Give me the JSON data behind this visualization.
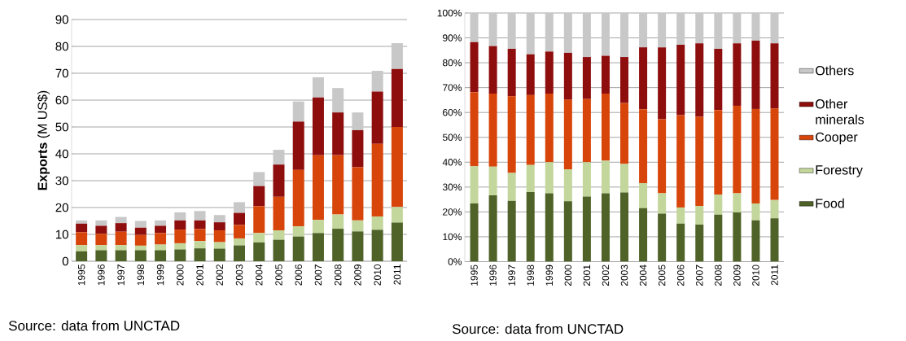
{
  "chart_data": [
    {
      "type": "bar",
      "stacked": true,
      "categories": [
        "1995",
        "1996",
        "1997",
        "1998",
        "1999",
        "2000",
        "2001",
        "2002",
        "2003",
        "2004",
        "2005",
        "2006",
        "2007",
        "2008",
        "2009",
        "2010",
        "2011"
      ],
      "ylabel": "**Exports** (M US$)",
      "ylim": [
        0,
        90
      ],
      "yticks": [
        0,
        10,
        20,
        30,
        40,
        50,
        60,
        70,
        80,
        90
      ],
      "grid": "y",
      "legend": false,
      "annotations": [
        "Source: data from UNCTAD"
      ],
      "series": [
        {
          "color": "#4f6228",
          "values": [
            3.7,
            4.1,
            4.1,
            4.1,
            4.1,
            4.4,
            4.8,
            4.7,
            5.9,
            7.0,
            8.0,
            9.2,
            10.5,
            12.1,
            11.1,
            11.7,
            14.4
          ]
        },
        {
          "color": "#c3d69b",
          "values": [
            2.3,
            1.9,
            1.9,
            1.7,
            2.1,
            2.3,
            2.7,
            2.4,
            2.6,
            3.5,
            3.5,
            3.8,
            4.9,
            5.3,
            4.1,
            5.0,
            5.8
          ]
        },
        {
          "color": "#d8450a",
          "values": [
            4.8,
            4.2,
            5.0,
            4.0,
            4.3,
            5.1,
            4.5,
            4.4,
            5.0,
            10.0,
            12.5,
            21.0,
            24.1,
            22.1,
            19.8,
            27.0,
            29.8
          ]
        },
        {
          "color": "#8e0d0d",
          "values": [
            3.2,
            3.0,
            3.2,
            2.7,
            2.7,
            3.4,
            3.2,
            3.0,
            4.5,
            7.5,
            12.0,
            18.0,
            21.5,
            15.9,
            13.8,
            19.5,
            21.6
          ]
        },
        {
          "color": "#c8c8c8",
          "values": [
            1.2,
            2.0,
            2.3,
            2.5,
            2.0,
            3.0,
            3.5,
            2.7,
            4.0,
            5.2,
            5.5,
            7.5,
            7.5,
            9.1,
            6.6,
            7.7,
            9.6
          ]
        }
      ]
    },
    {
      "type": "bar",
      "stacked": true,
      "categories": [
        "1995",
        "1996",
        "1997",
        "1998",
        "1999",
        "2000",
        "2001",
        "2002",
        "2003",
        "2004",
        "2005",
        "2006",
        "2007",
        "2008",
        "2009",
        "2010",
        "2011"
      ],
      "ylim": [
        0,
        100
      ],
      "yticks": [
        {
          "value": 0,
          "label": "0%"
        },
        {
          "value": 10,
          "label": "10%"
        },
        {
          "value": 20,
          "label": "20%"
        },
        {
          "value": 30,
          "label": "30%"
        },
        {
          "value": 40,
          "label": "40%"
        },
        {
          "value": 50,
          "label": "50%"
        },
        {
          "value": 60,
          "label": "60%"
        },
        {
          "value": 70,
          "label": "70%"
        },
        {
          "value": 80,
          "label": "80%"
        },
        {
          "value": 90,
          "label": "90%"
        },
        {
          "value": 100,
          "label": "100%"
        }
      ],
      "grid": "y",
      "legend": "right",
      "annotations": [
        "Source: data from UNCTAD"
      ],
      "series": [
        {
          "name": "Food",
          "color": "#4f6228",
          "values": [
            23.4,
            26.7,
            24.5,
            28.0,
            27.5,
            24.3,
            26.2,
            27.5,
            27.8,
            21.5,
            19.3,
            15.3,
            14.9,
            18.9,
            19.8,
            16.6,
            17.4
          ]
        },
        {
          "name": "Forestry",
          "color": "#c3d69b",
          "values": [
            15.0,
            11.5,
            11.2,
            10.9,
            12.5,
            12.8,
            13.8,
            13.1,
            11.5,
            10.1,
            8.2,
            6.5,
            7.5,
            8.1,
            7.7,
            6.8,
            7.4
          ]
        },
        {
          "name": "Cooper",
          "color": "#d8450a",
          "values": [
            29.8,
            29.4,
            30.8,
            28.1,
            27.6,
            28.0,
            25.4,
            27.0,
            24.5,
            29.7,
            29.8,
            37.1,
            35.9,
            34.0,
            35.2,
            38.0,
            36.8
          ]
        },
        {
          "name": "Other minerals",
          "color": "#8e0d0d",
          "values": [
            20.1,
            19.1,
            19.1,
            16.4,
            16.9,
            18.9,
            16.9,
            15.2,
            18.5,
            24.9,
            28.9,
            28.3,
            29.5,
            24.6,
            25.1,
            27.5,
            26.2
          ]
        },
        {
          "name": "Others",
          "color": "#c8c8c8",
          "values": [
            11.7,
            13.3,
            14.4,
            16.6,
            15.5,
            16.0,
            17.7,
            17.2,
            17.7,
            13.8,
            13.8,
            12.8,
            12.2,
            14.4,
            12.2,
            11.1,
            12.2
          ]
        }
      ]
    }
  ]
}
